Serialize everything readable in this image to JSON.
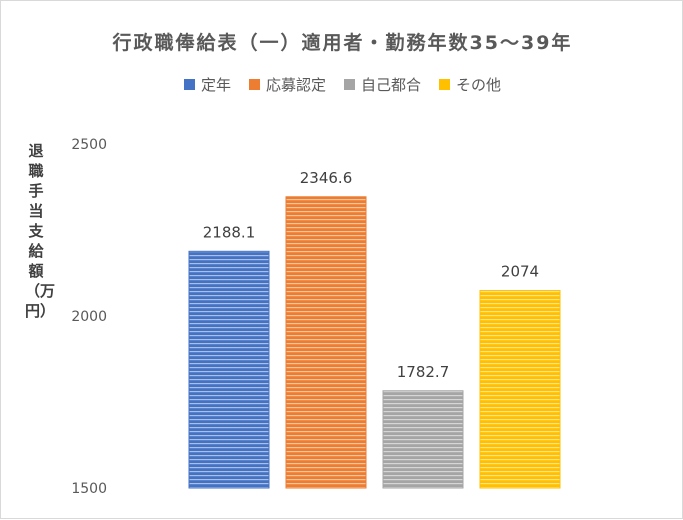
{
  "chart_data": {
    "type": "bar",
    "title": "行政職俸給表（一）適用者・勤務年数35〜39年",
    "xlabel": "",
    "ylabel": "退職手当支給額（万円）",
    "ylim": [
      1500,
      2500
    ],
    "yticks": [
      1500,
      2000,
      2500
    ],
    "legend_position": "top",
    "categories": [
      "定年",
      "応募認定",
      "自己都合",
      "その他"
    ],
    "values": [
      2188.1,
      2346.6,
      1782.7,
      2074
    ],
    "value_labels": [
      "2188.1",
      "2346.6",
      "1782.7",
      "2074"
    ],
    "colors": [
      "#4472c4",
      "#ed7d31",
      "#a5a5a5",
      "#ffc000"
    ]
  }
}
